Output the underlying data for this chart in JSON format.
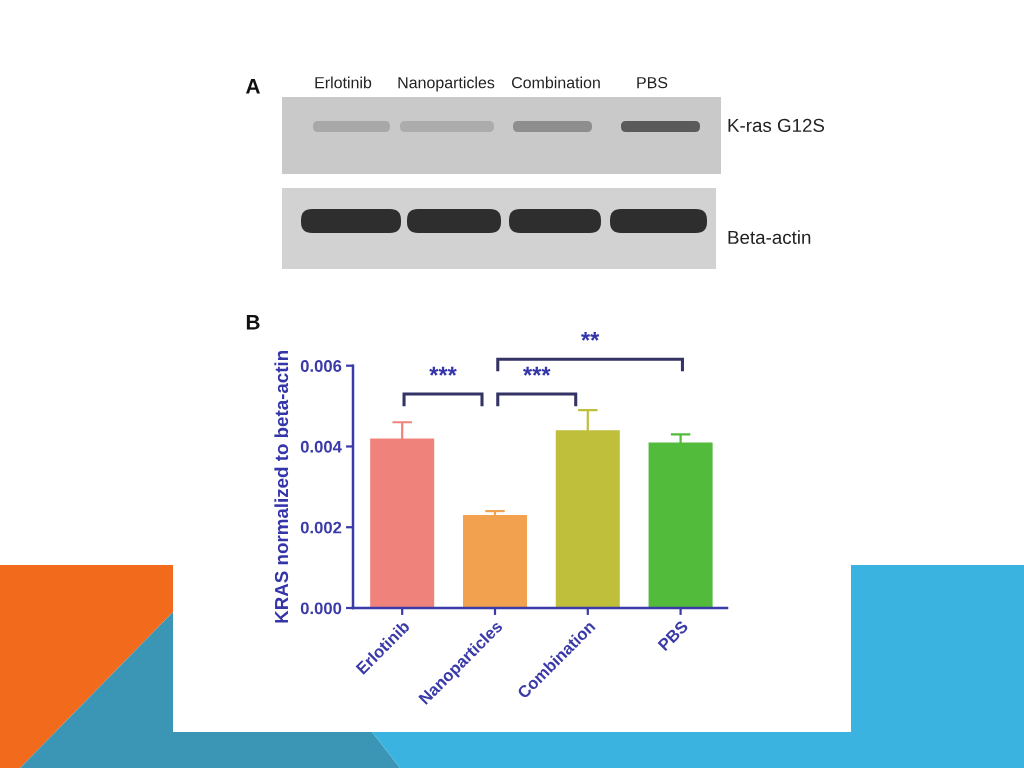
{
  "chart_data": {
    "type": "bar",
    "categories": [
      "Erlotinib",
      "Nanoparticles",
      "Combination",
      "PBS"
    ],
    "values": [
      0.0042,
      0.0023,
      0.0044,
      0.0041
    ],
    "errors": [
      0.0004,
      0.0001,
      0.0005,
      0.0002
    ],
    "colors": [
      "#ef837c",
      "#f2a24e",
      "#c0bf3c",
      "#52bb3b"
    ],
    "ylabel": "KRAS normalized to beta-actin",
    "ylim": [
      0,
      0.006
    ],
    "yticks": [
      {
        "value": 0,
        "label": "0.000"
      },
      {
        "value": 0.002,
        "label": "0.002"
      },
      {
        "value": 0.004,
        "label": "0.004"
      },
      {
        "value": 0.006,
        "label": "0.006"
      }
    ],
    "annotations": [
      "A",
      "K-ras G12S",
      "Beta-actin",
      "B",
      "***",
      "***",
      "**"
    ]
  }
}
